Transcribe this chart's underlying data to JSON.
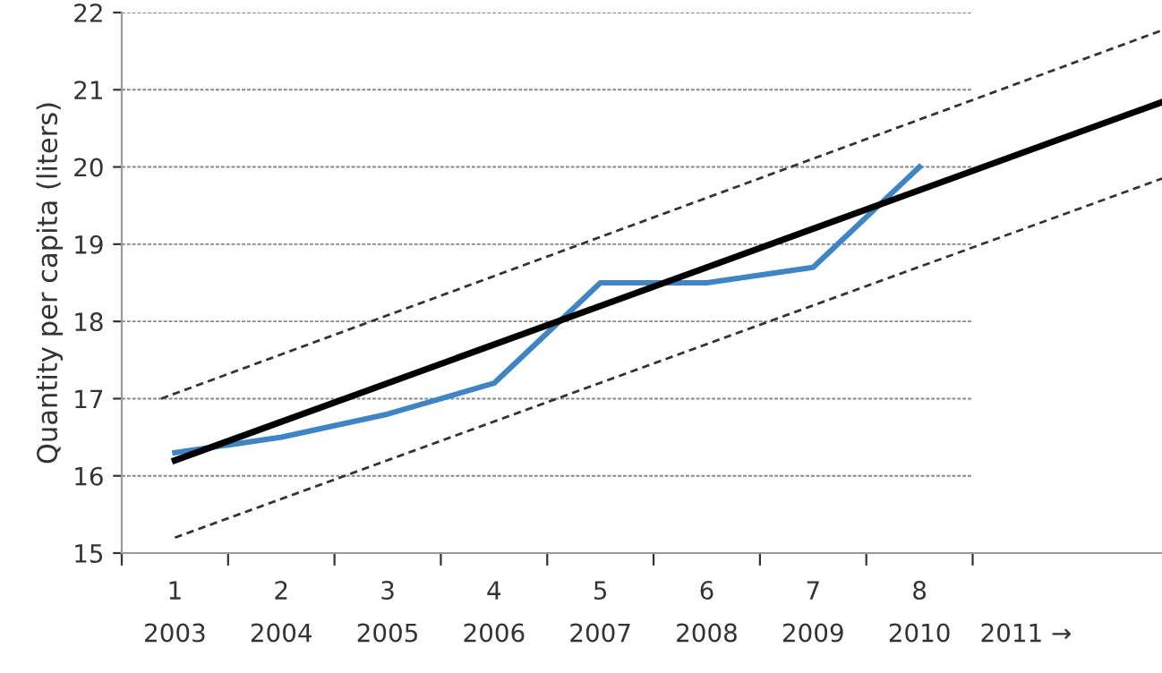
{
  "chart_data": {
    "type": "line",
    "ylabel": "Quantity per capita (liters)",
    "x": [
      1,
      2,
      3,
      4,
      5,
      6,
      7,
      8
    ],
    "series": [
      {
        "color": "#3d85c6",
        "values": [
          16.3,
          16.5,
          16.8,
          17.2,
          18.5,
          18.5,
          18.7,
          20.0
        ]
      },
      {
        "color": "#000000",
        "x": [
          1,
          10.28
        ],
        "values": [
          16.2,
          20.84
        ]
      },
      {
        "color": "#333333",
        "x": [
          0.87,
          10.28
        ],
        "values": [
          17.0,
          21.77
        ],
        "line_style": "dashed"
      },
      {
        "color": "#333333",
        "x": [
          1,
          10.28
        ],
        "values": [
          15.2,
          19.85
        ],
        "line_style": "dashed"
      }
    ],
    "xlim": [
      0.5,
      10.28
    ],
    "xticks": [
      {
        "value": 0.5,
        "label": null
      },
      1,
      {
        "value": 1.5,
        "label": null
      },
      2,
      {
        "value": 2.5,
        "label": null
      },
      3,
      {
        "value": 3.5,
        "label": null
      },
      4,
      {
        "value": 4.5,
        "label": null
      },
      5,
      {
        "value": 5.5,
        "label": null
      },
      6,
      {
        "value": 6.5,
        "label": null
      },
      7,
      {
        "value": 7.5,
        "label": null
      },
      8,
      {
        "value": 8.5,
        "label": null
      }
    ],
    "x2lim": [
      2002.5,
      2012.28
    ],
    "x2ticks": [
      2003,
      2004,
      2005,
      2006,
      2007,
      2008,
      2009,
      2010,
      {
        "value": 2011,
        "label": "2011 →"
      }
    ],
    "ylim": [
      15,
      22
    ],
    "yticks": [
      15,
      16,
      17,
      18,
      19,
      20,
      21,
      22
    ],
    "grid": "y",
    "legend": false
  }
}
